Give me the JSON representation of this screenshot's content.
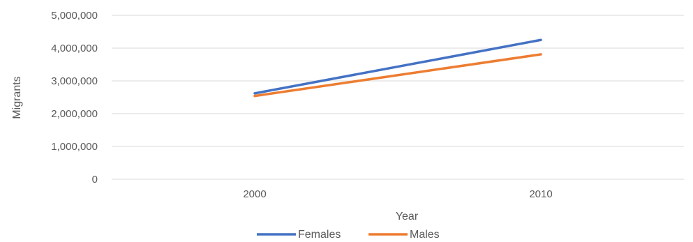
{
  "chart_data": {
    "type": "line",
    "title": "",
    "xlabel": "Year",
    "ylabel": "Migrants",
    "categories": [
      "2000",
      "2010"
    ],
    "ylim": [
      0,
      5000000
    ],
    "y_ticks": [
      0,
      1000000,
      2000000,
      3000000,
      4000000,
      5000000
    ],
    "y_tick_labels": [
      "0",
      "1,000,000",
      "2,000,000",
      "3,000,000",
      "4,000,000",
      "5,000,000"
    ],
    "grid": true,
    "legend_position": "bottom",
    "series": [
      {
        "name": "Females",
        "values": [
          2620000,
          4250000
        ],
        "color": "#4472C4"
      },
      {
        "name": "Males",
        "values": [
          2540000,
          3810000
        ],
        "color": "#ED7D31"
      }
    ]
  },
  "colors": {
    "grid": "#d9d9d9",
    "text": "#595959"
  }
}
